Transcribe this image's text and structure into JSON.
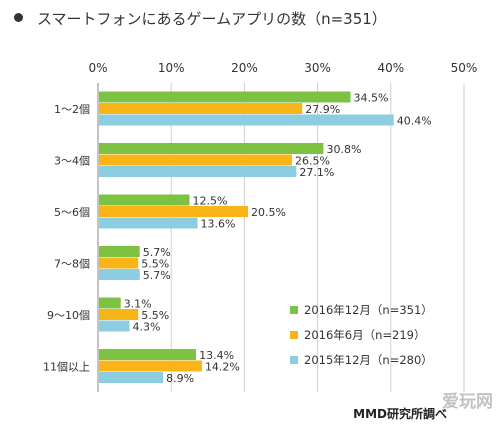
{
  "title": "スマートフォンにあるゲームアプリの数（n=351）",
  "credit": "MMD研究所調べ",
  "watermark": "爱玩网",
  "chart_data": {
    "type": "bar",
    "orientation": "horizontal",
    "categories": [
      "1〜2個",
      "3〜4個",
      "5〜6個",
      "7〜8個",
      "9〜10個",
      "11個以上"
    ],
    "series": [
      {
        "name": "2016年12月（n=351）",
        "color": "#7dc242",
        "values": [
          34.5,
          30.8,
          12.5,
          5.7,
          3.1,
          13.4
        ]
      },
      {
        "name": "2016年6月（n=219）",
        "color": "#f9b418",
        "values": [
          27.9,
          26.5,
          20.5,
          5.5,
          5.5,
          14.2
        ]
      },
      {
        "name": "2015年12月（n=280）",
        "color": "#8ccde2",
        "values": [
          40.4,
          27.1,
          13.6,
          5.7,
          4.3,
          8.9
        ]
      }
    ],
    "xlim": [
      0,
      50
    ],
    "xticks": [
      "0%",
      "10%",
      "20%",
      "30%",
      "40%",
      "50%"
    ],
    "grid": true,
    "legend_position": "bottom-right",
    "value_suffix": "%"
  }
}
